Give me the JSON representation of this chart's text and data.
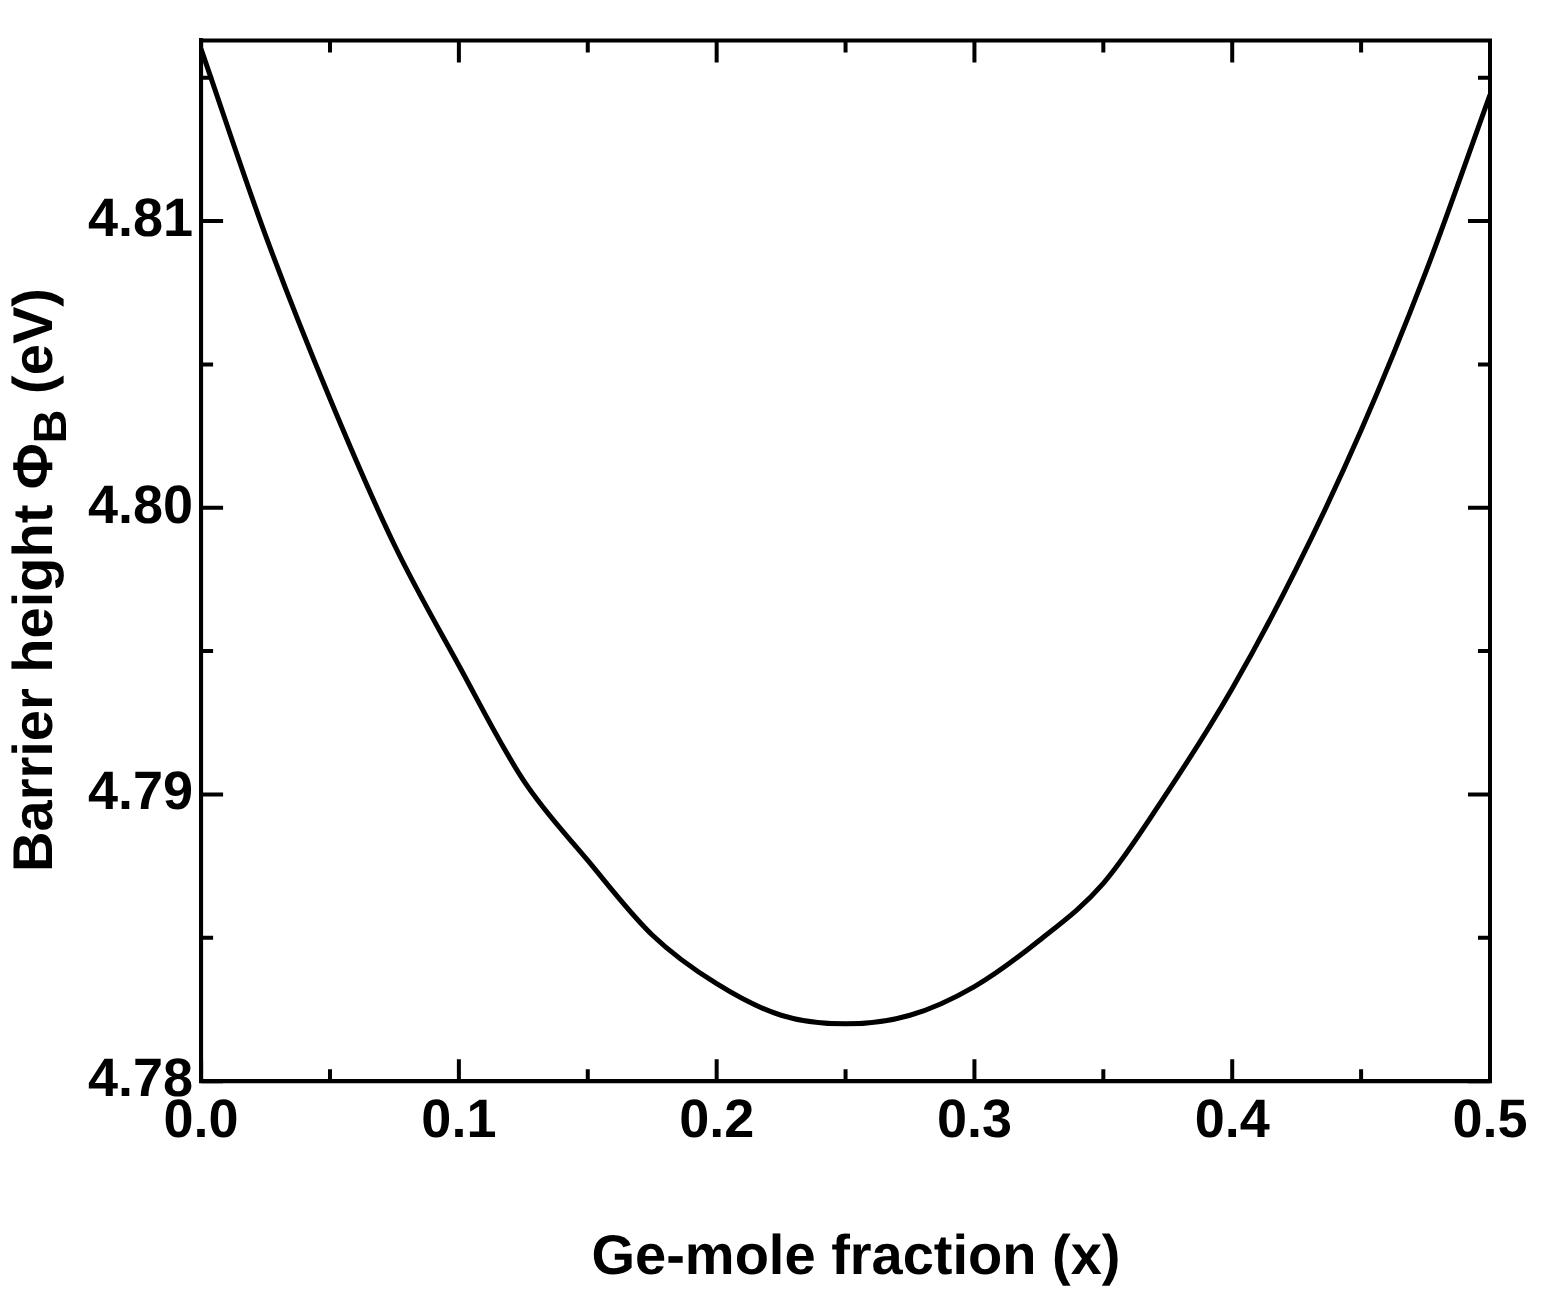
{
  "chart_data": {
    "type": "line",
    "xlabel": "Ge-mole fraction (x)",
    "ylabel": "Barrier height Φ$_{B}$ (eV)",
    "x": [
      0,
      0.025,
      0.05,
      0.075,
      0.1,
      0.125,
      0.15,
      0.175,
      0.2,
      0.225,
      0.25,
      0.275,
      0.3,
      0.325,
      0.35,
      0.375,
      0.4,
      0.425,
      0.45,
      0.475,
      0.5
    ],
    "values": [
      4.816,
      4.8095,
      4.8038,
      4.7987,
      4.7945,
      4.7905,
      4.7877,
      4.7851,
      4.7834,
      4.7823,
      4.782,
      4.7823,
      4.7833,
      4.7849,
      4.7869,
      4.7901,
      4.7937,
      4.7979,
      4.8027,
      4.8082,
      4.8144
    ],
    "color": "#000000",
    "marker": "none",
    "line_style": "solid",
    "grid": false,
    "legend": false,
    "xlim": [
      0,
      0.5
    ],
    "xticks": [
      {
        "value": 0,
        "label": "0.0"
      },
      {
        "value": 0.05,
        "label": null
      },
      0.1,
      {
        "value": 0.15,
        "label": null
      },
      0.2,
      {
        "value": 0.25,
        "label": null
      },
      0.3,
      {
        "value": 0.35,
        "label": null
      },
      0.4,
      {
        "value": 0.45,
        "label": null
      },
      0.5
    ],
    "ylim": [
      4.78,
      4.8163
    ],
    "yticks": [
      4.78,
      {
        "value": 4.785,
        "label": null
      },
      4.79,
      {
        "value": 4.795,
        "label": null
      },
      {
        "value": 4.8,
        "label": "4.80"
      },
      {
        "value": 4.805,
        "label": null
      },
      4.81,
      {
        "value": 4.815,
        "label": null
      }
    ]
  }
}
